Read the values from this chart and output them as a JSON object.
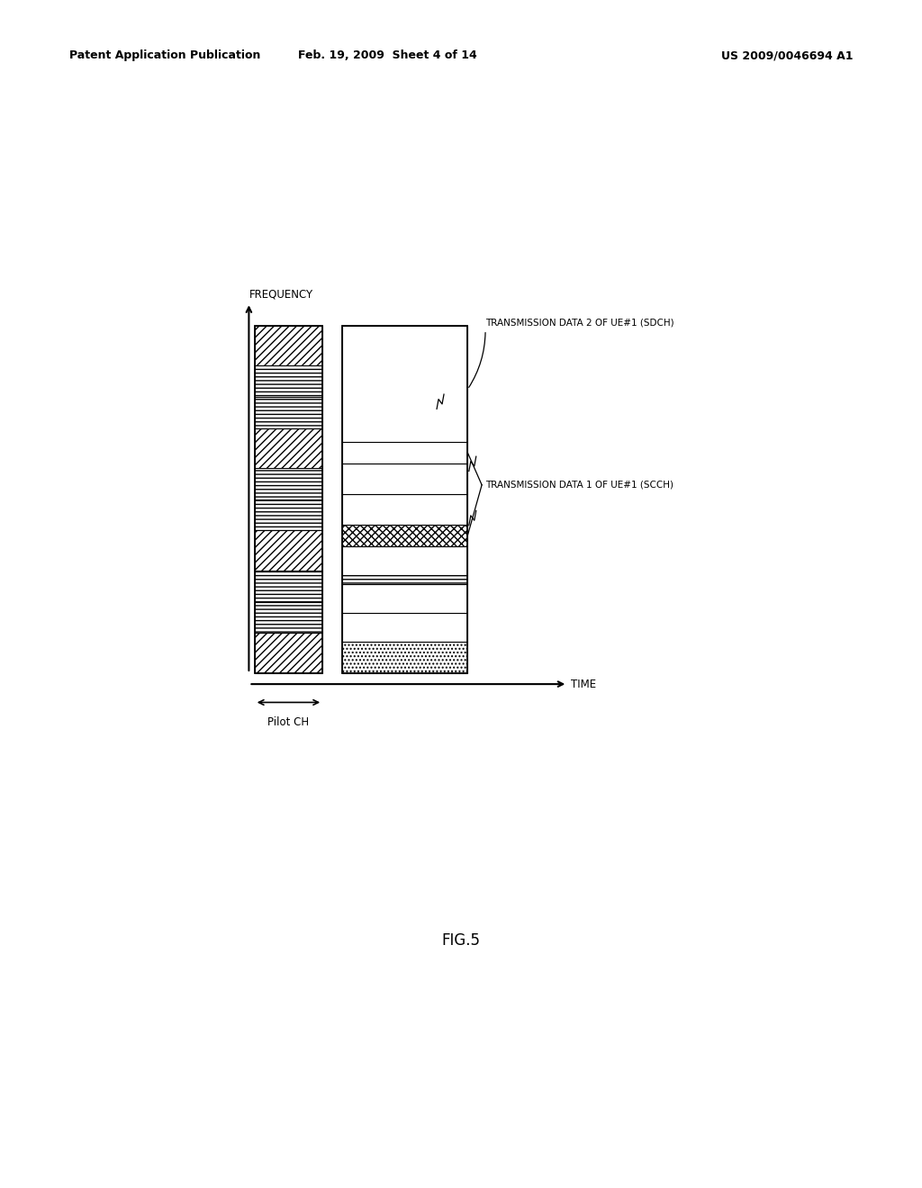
{
  "bg_color": "#ffffff",
  "header_left": "Patent Application Publication",
  "header_mid": "Feb. 19, 2009  Sheet 4 of 14",
  "header_right": "US 2009/0046694 A1",
  "figure_label": "FIG.5",
  "freq_label": "FREQUENCY",
  "time_label": "TIME",
  "pilot_label": "Pilot CH",
  "label1": "TRANSMISSION DATA 2 OF UE#1 (SDCH)",
  "label2": "TRANSMISSION DATA 1 OF UE#1 (SCCH)",
  "c1x": 0.195,
  "c1w": 0.095,
  "c2x": 0.318,
  "c2w": 0.175,
  "dbot": 0.42,
  "dtop": 0.8
}
